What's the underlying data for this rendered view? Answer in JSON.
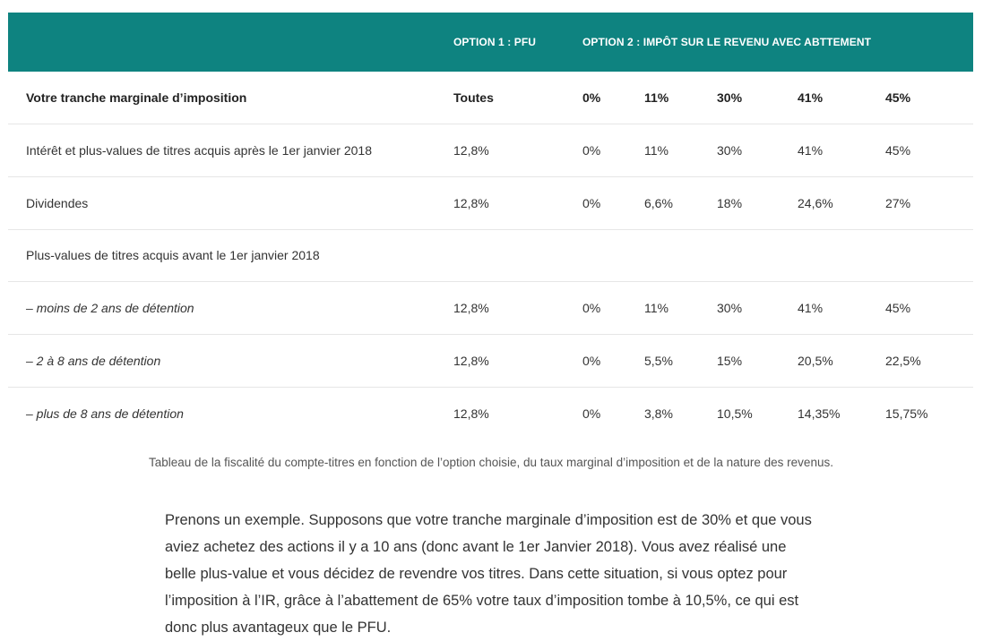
{
  "table": {
    "headers": [
      "",
      "OPTION 1 : PFU",
      "OPTION 2 : IMPÔT SUR LE REVENU AVEC ABTTEMENT",
      "",
      "",
      "",
      ""
    ],
    "rows": [
      [
        "Votre tranche marginale d’imposition",
        "Toutes",
        "0%",
        "11%",
        "30%",
        "41%",
        "45%"
      ],
      [
        "Intérêt et plus-values de titres acquis après le 1er janvier 2018",
        "12,8%",
        "0%",
        "11%",
        "30%",
        "41%",
        "45%"
      ],
      [
        "Dividendes",
        "12,8%",
        "0%",
        "6,6%",
        "18%",
        "24,6%",
        "27%"
      ],
      [
        "Plus-values de titres acquis avant le 1er janvier 2018",
        "",
        "",
        "",
        "",
        "",
        ""
      ],
      [
        "– moins de 2 ans de détention",
        "12,8%",
        "0%",
        "11%",
        "30%",
        "41%",
        "45%"
      ],
      [
        "– 2 à 8 ans de détention",
        "12,8%",
        "0%",
        "5,5%",
        "15%",
        "20,5%",
        "22,5%"
      ],
      [
        "– plus de 8 ans de détention",
        "12,8%",
        "0%",
        "3,8%",
        "10,5%",
        "14,35%",
        "15,75%"
      ]
    ]
  },
  "caption": "Tableau de la fiscalité du compte-titres en fonction de l’option choisie, du taux marginal d’imposition et de la nature des revenus.",
  "paragraph": "Prenons un exemple. Supposons que votre tranche marginale d’imposition est de 30% et que vous aviez achetez des actions il y a 10 ans (donc avant le 1er Janvier 2018). Vous avez réalisé une belle plus-value et vous décidez de revendre vos titres. Dans cette situation, si vous optez pour l’imposition à l’IR, grâce à l’abattement de 65% votre taux d’imposition tombe à 10,5%, ce qui est donc plus avantageux que le PFU.",
  "colors": {
    "header_bg": "#0e8380",
    "header_text": "#ffffff",
    "divider": "#e6e6e6"
  }
}
